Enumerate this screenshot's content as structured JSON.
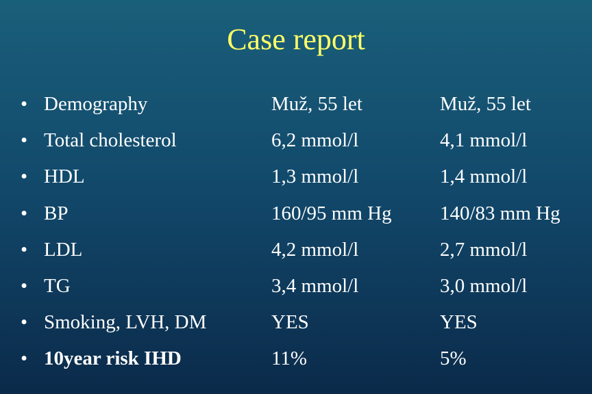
{
  "title": "Case report",
  "rows": [
    {
      "label": "Demography",
      "a": "Muž, 55 let",
      "b": "Muž, 55 let"
    },
    {
      "label": "Total cholesterol",
      "a": "6,2 mmol/l",
      "b": "4,1 mmol/l"
    },
    {
      "label": "HDL",
      "a": "1,3 mmol/l",
      "b": "1,4 mmol/l"
    },
    {
      "label": "BP",
      "a": "160/95 mm Hg",
      "b": "140/83 mm Hg"
    },
    {
      "label": "LDL",
      "a": "4,2 mmol/l",
      "b": "2,7 mmol/l"
    },
    {
      "label": "TG",
      "a": "3,4 mmol/l",
      "b": "3,0 mmol/l"
    },
    {
      "label": "Smoking, LVH, DM",
      "a": "YES",
      "b": "YES"
    },
    {
      "label": "10year risk IHD",
      "a": "11%",
      "b": "5%",
      "bold": true
    }
  ]
}
